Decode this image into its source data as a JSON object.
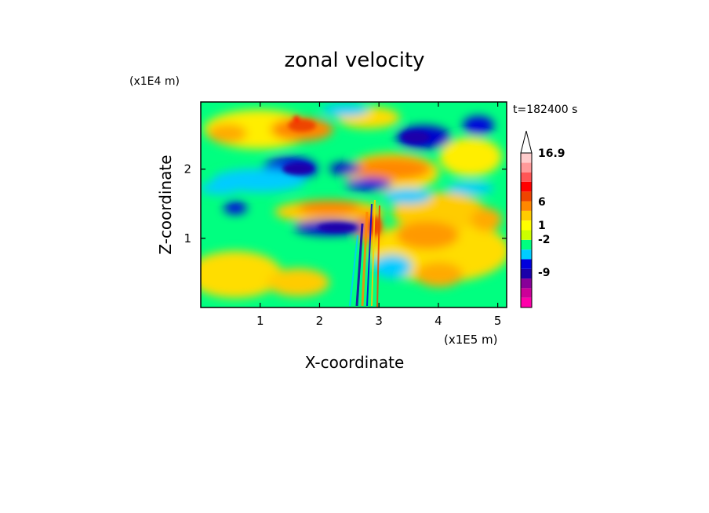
{
  "chart_data": {
    "type": "heatmap",
    "title": "zonal velocity",
    "xlabel": "X-coordinate",
    "ylabel": "Z-coordinate",
    "x_unit": "(x1E5 m)",
    "y_unit": "(x1E4 m)",
    "time_label": "t=182400 s",
    "xlim": [
      0,
      5.15
    ],
    "ylim": [
      0,
      2.97
    ],
    "x_ticks": [
      "1",
      "2",
      "3",
      "4",
      "5"
    ],
    "y_ticks": [
      "1",
      "2"
    ],
    "grid": false,
    "legend": "right colorbar",
    "colorbar": {
      "tick_labels": [
        "16.9",
        "6",
        "1",
        "-2",
        "-9"
      ],
      "colors": [
        "#ff00aa",
        "#cc0099",
        "#880099",
        "#1a00aa",
        "#0000dd",
        "#00ccff",
        "#00ff80",
        "#ccff00",
        "#ffff00",
        "#ffcc00",
        "#ff8800",
        "#ee4400",
        "#ff0000",
        "#ff5555",
        "#ff9999",
        "#ffcccc"
      ],
      "colorbar_top_cap": "open-ended triangle"
    },
    "field_description": "Zonal velocity contour field showing alternating positive (orange/red) and negative (blue) wave bands, with a strong dipole near x=2.7-3.0"
  },
  "colors": {
    "background": "#ffffff",
    "frame": "#000000"
  }
}
